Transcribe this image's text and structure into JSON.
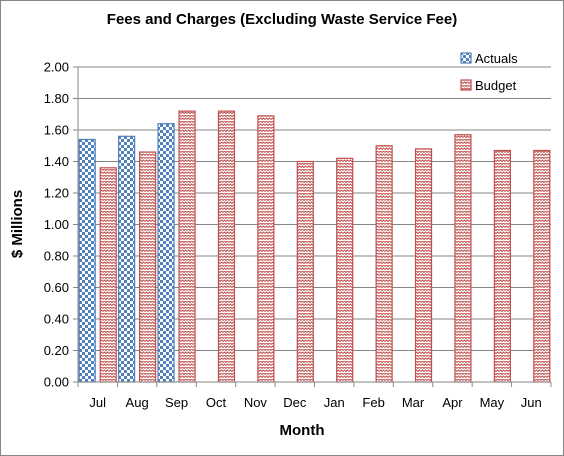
{
  "chart_data": {
    "type": "bar",
    "title": "Fees and Charges (Excluding  Waste Service Fee)",
    "xlabel": "Month",
    "ylabel": "$ Millions",
    "categories": [
      "Jul",
      "Aug",
      "Sep",
      "Oct",
      "Nov",
      "Dec",
      "Jan",
      "Feb",
      "Mar",
      "Apr",
      "May",
      "Jun"
    ],
    "ylim": [
      0,
      2.0
    ],
    "yticks": [
      "0.00",
      "0.20",
      "0.40",
      "0.60",
      "0.80",
      "1.00",
      "1.20",
      "1.40",
      "1.60",
      "1.80",
      "2.00"
    ],
    "grid": true,
    "legend_position": "top-right",
    "series": [
      {
        "name": "Actuals",
        "color": "#4F81BD",
        "pattern": "checkerboard",
        "values": [
          1.54,
          1.56,
          1.64,
          null,
          null,
          null,
          null,
          null,
          null,
          null,
          null,
          null
        ]
      },
      {
        "name": "Budget",
        "color": "#C0504D",
        "pattern": "zigzag",
        "values": [
          1.36,
          1.46,
          1.72,
          1.72,
          1.69,
          1.4,
          1.42,
          1.5,
          1.48,
          1.57,
          1.47,
          1.47
        ]
      }
    ]
  }
}
